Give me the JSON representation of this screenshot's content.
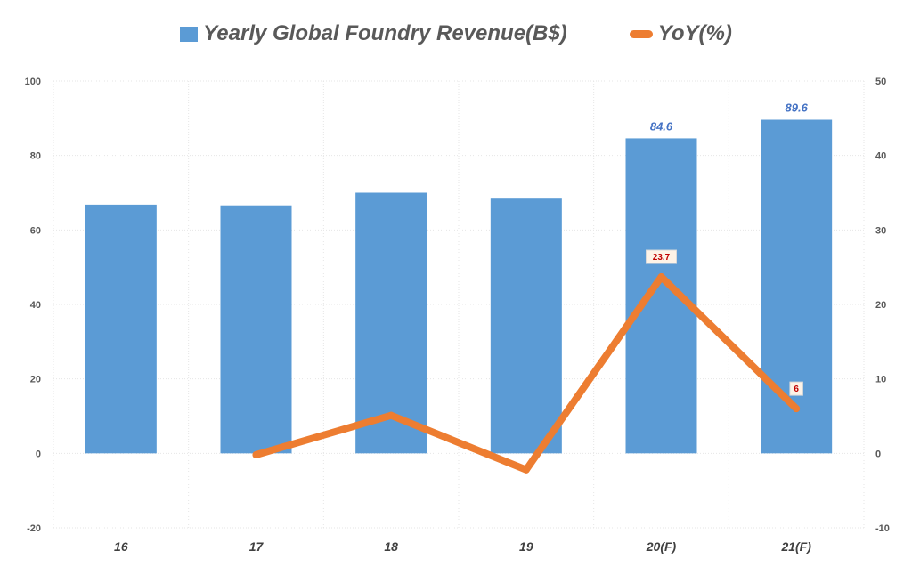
{
  "chart_data": {
    "type": "bar",
    "categories": [
      "16",
      "17",
      "18",
      "19",
      "20(F)",
      "21(F)"
    ],
    "series": [
      {
        "name": "Yearly Global Foundry Revenue(B$)",
        "type": "bar",
        "axis": "left",
        "color": "#5b9bd5",
        "values": [
          66.8,
          66.6,
          70.0,
          68.4,
          84.6,
          89.6
        ],
        "data_labels": [
          null,
          null,
          null,
          null,
          "84.6",
          "89.6"
        ]
      },
      {
        "name": "YoY(%)",
        "type": "line",
        "axis": "right",
        "color": "#ed7d31",
        "values": [
          null,
          -0.2,
          5.1,
          -2.2,
          23.7,
          6.0
        ],
        "data_labels": [
          null,
          null,
          null,
          null,
          "23.7",
          "6"
        ]
      }
    ],
    "y_left": {
      "min": -20,
      "max": 100,
      "ticks": [
        -20,
        0,
        20,
        40,
        60,
        80,
        100
      ]
    },
    "y_right": {
      "min": -10,
      "max": 50,
      "ticks": [
        -10,
        0,
        10,
        20,
        30,
        40,
        50
      ]
    },
    "grid": true,
    "legend_position": "top"
  }
}
